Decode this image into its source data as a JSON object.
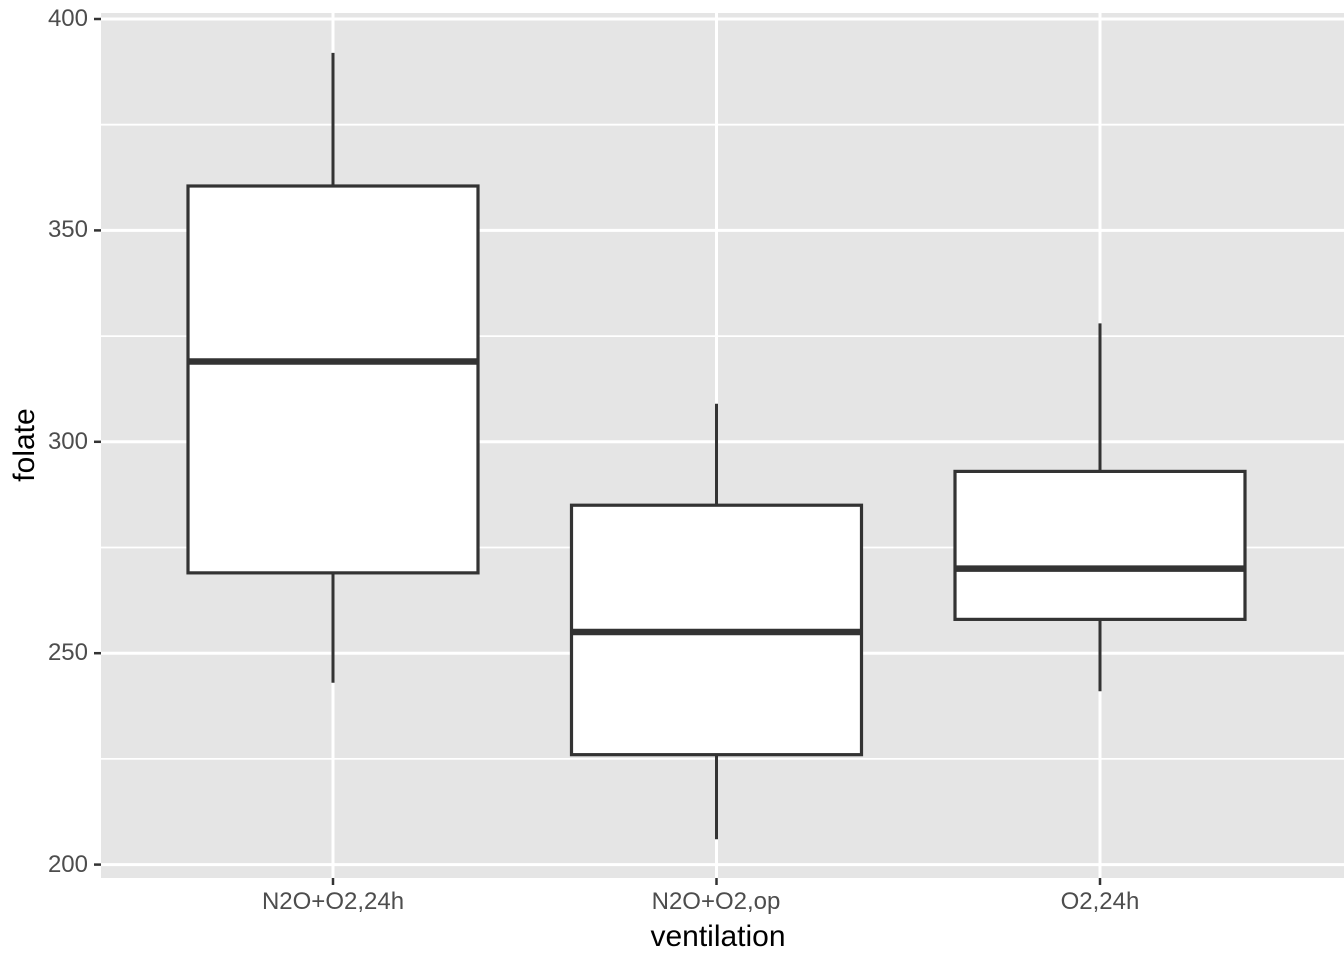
{
  "figure": {
    "background_color": "#FFFFFF",
    "panel_color": "#E5E5E5",
    "grid_color": "#FFFFFF",
    "box_line_color": "#333333",
    "box_fill_color": "#FFFFFF",
    "axis_tick_color": "#333333",
    "tick_label_color": "#4D4D4D",
    "axis_title_color": "#000000"
  },
  "chart_data": {
    "type": "boxplot",
    "title": "",
    "xlabel": "ventilation",
    "ylabel": "folate",
    "categories": [
      "N2O+O2,24h",
      "N2O+O2,op",
      "O2,24h"
    ],
    "y_ticks": [
      200,
      250,
      300,
      350,
      400
    ],
    "y_minor_ticks": [
      225,
      275,
      325,
      375
    ],
    "ylim": [
      197,
      401.5
    ],
    "grid": true,
    "legend": false,
    "orientation": "vertical",
    "series": [
      {
        "category": "N2O+O2,24h",
        "whisker_low": 243,
        "q1": 269,
        "median": 319,
        "q3": 360.5,
        "whisker_high": 392,
        "outliers": []
      },
      {
        "category": "N2O+O2,op",
        "whisker_low": 206,
        "q1": 226,
        "median": 255,
        "q3": 285,
        "whisker_high": 309,
        "outliers": []
      },
      {
        "category": "O2,24h",
        "whisker_low": 241,
        "q1": 258,
        "median": 270,
        "q3": 293,
        "whisker_high": 328,
        "outliers": []
      }
    ]
  }
}
